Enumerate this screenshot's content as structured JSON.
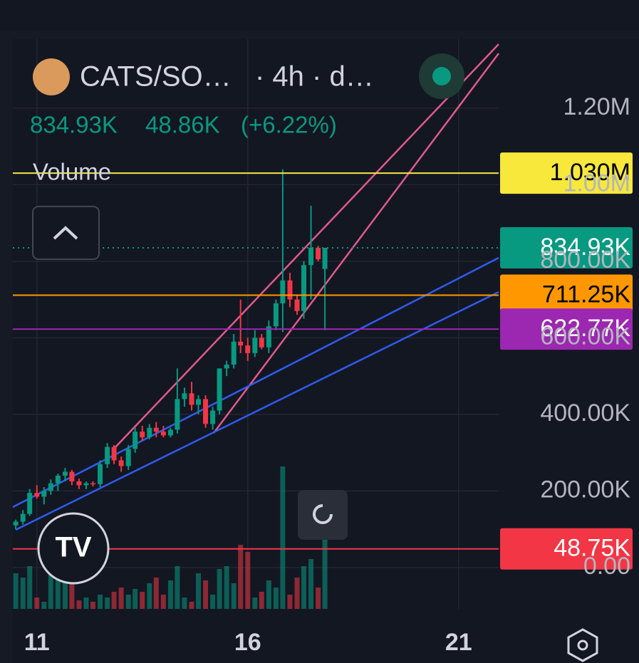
{
  "header": {
    "symbol": "CATS/SO…",
    "interval": "· 4h · d…",
    "last": "834.93K",
    "change": "48.86K",
    "change_pct": "(+6.22%)",
    "pane": "Volume"
  },
  "chart_data": {
    "type": "candlestick",
    "up_color": "#089981",
    "down_color": "#f23645",
    "grid": true,
    "x": [
      10.5,
      10.67,
      10.83,
      11,
      11.17,
      11.33,
      11.5,
      11.67,
      11.83,
      12,
      12.17,
      12.33,
      12.5,
      12.67,
      12.83,
      13,
      13.17,
      13.33,
      13.5,
      13.67,
      13.83,
      14,
      14.17,
      14.33,
      14.5,
      14.67,
      14.83,
      15,
      15.17,
      15.33,
      15.5,
      15.67,
      15.83,
      16,
      16.17,
      16.33,
      16.5,
      16.67,
      16.83,
      17,
      17.17,
      17.33,
      17.5,
      17.67,
      17.83
    ],
    "ohlc": [
      [
        110000,
        125000,
        100000,
        120000
      ],
      [
        120000,
        150000,
        112000,
        140000
      ],
      [
        140000,
        205000,
        135000,
        195000
      ],
      [
        195000,
        215000,
        180000,
        185000
      ],
      [
        185000,
        210000,
        165000,
        200000
      ],
      [
        200000,
        230000,
        190000,
        220000
      ],
      [
        220000,
        245000,
        200000,
        240000
      ],
      [
        240000,
        260000,
        225000,
        250000
      ],
      [
        250000,
        255000,
        215000,
        225000
      ],
      [
        225000,
        232000,
        205000,
        215000
      ],
      [
        215000,
        225000,
        205000,
        220000
      ],
      [
        220000,
        225000,
        212000,
        218000
      ],
      [
        218000,
        280000,
        210000,
        270000
      ],
      [
        270000,
        325000,
        260000,
        315000
      ],
      [
        315000,
        320000,
        270000,
        280000
      ],
      [
        280000,
        290000,
        250000,
        265000
      ],
      [
        265000,
        320000,
        255000,
        310000
      ],
      [
        310000,
        365000,
        300000,
        355000
      ],
      [
        355000,
        370000,
        330000,
        340000
      ],
      [
        340000,
        375000,
        335000,
        365000
      ],
      [
        365000,
        380000,
        340000,
        355000
      ],
      [
        355000,
        370000,
        340000,
        345000
      ],
      [
        345000,
        365000,
        340000,
        360000
      ],
      [
        360000,
        520000,
        350000,
        440000
      ],
      [
        440000,
        470000,
        420000,
        455000
      ],
      [
        455000,
        485000,
        410000,
        425000
      ],
      [
        425000,
        450000,
        400000,
        440000
      ],
      [
        440000,
        450000,
        365000,
        375000
      ],
      [
        375000,
        420000,
        360000,
        410000
      ],
      [
        410000,
        520000,
        400000,
        520000
      ],
      [
        520000,
        540000,
        500000,
        530000
      ],
      [
        530000,
        610000,
        520000,
        590000
      ],
      [
        590000,
        700000,
        560000,
        580000
      ],
      [
        580000,
        600000,
        540000,
        560000
      ],
      [
        560000,
        620000,
        550000,
        600000
      ],
      [
        600000,
        610000,
        570000,
        575000
      ],
      [
        575000,
        645000,
        560000,
        630000
      ],
      [
        630000,
        700000,
        620000,
        690000
      ],
      [
        690000,
        1040000,
        615000,
        750000
      ],
      [
        750000,
        770000,
        680000,
        700000
      ],
      [
        700000,
        710000,
        660000,
        670000
      ],
      [
        670000,
        800000,
        650000,
        790000
      ],
      [
        790000,
        945000,
        700000,
        835000
      ],
      [
        835000,
        840000,
        800000,
        805000
      ],
      [
        780000,
        835000,
        620000,
        835000
      ]
    ],
    "volume": [
      25,
      22,
      30,
      8,
      5,
      30,
      22,
      25,
      18,
      6,
      8,
      5,
      10,
      8,
      12,
      15,
      10,
      14,
      12,
      18,
      22,
      10,
      20,
      30,
      8,
      5,
      25,
      20,
      10,
      28,
      30,
      18,
      45,
      40,
      8,
      12,
      20,
      15,
      100,
      10,
      22,
      30,
      35,
      15,
      50
    ],
    "xlim": [
      10.43,
      21.95
    ],
    "xticks": [
      11,
      16,
      21
    ],
    "ylim": [
      -108000,
      1380000
    ],
    "yticks": [
      {
        "value": 0,
        "label": "0.00"
      },
      {
        "value": 200000,
        "label": "200.00K"
      },
      {
        "value": 400000,
        "label": "400.00K"
      },
      {
        "value": 600000,
        "label": "600.00K"
      },
      {
        "value": 800000,
        "label": "800.00K"
      },
      {
        "value": 1000000,
        "label": "1.00M"
      },
      {
        "value": 1200000,
        "label": "1.20M"
      }
    ],
    "price_lines": [
      {
        "value": 1030000,
        "label": "1.030M",
        "color": "#f7e83b",
        "text_color": "#000000"
      },
      {
        "value": 834930,
        "label": "834.93K",
        "color": "#089981",
        "text_color": "#ffffff",
        "dashed": true
      },
      {
        "value": 711250,
        "label": "711.25K",
        "color": "#ff9800",
        "text_color": "#000000"
      },
      {
        "value": 622770,
        "label": "622.77K",
        "color": "#9c27b0",
        "text_color": "#ffffff"
      },
      {
        "value": 48750,
        "label": "48.75K",
        "color": "#f23645",
        "text_color": "#ffffff"
      }
    ]
  }
}
